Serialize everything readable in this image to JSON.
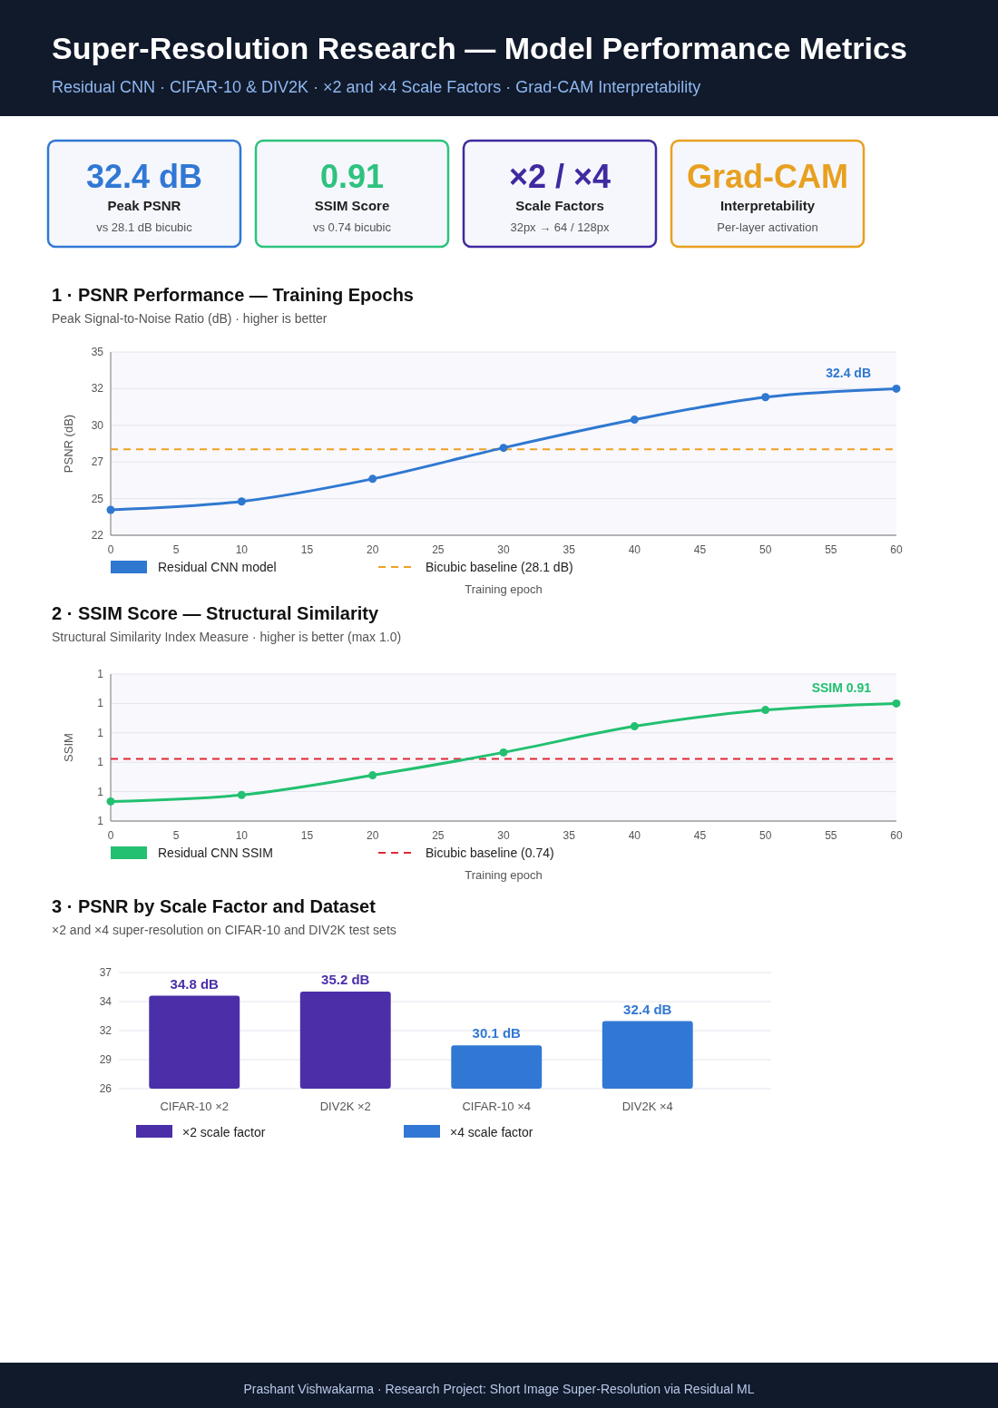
{
  "chart_data": [
    {
      "type": "other",
      "title": "Super-Resolution Research — Model Performance Metrics",
      "subtitle": "Residual CNN  ·  CIFAR-10 & DIV2K  ·  ×2 and ×4 Scale Factors  ·  Grad-CAM Interpretability",
      "colors": [
        "#3178d4",
        "#2ec27e",
        "#3f2aa0",
        "#e8a020"
      ],
      "annotations": [
        "32.4 dB",
        "Peak PSNR",
        "vs 28.1 dB bicubic",
        "0.91",
        "SSIM Score",
        "vs 0.74 bicubic",
        "×2 / ×4",
        "Scale Factors",
        "32px → 64 / 128px",
        "Grad-CAM",
        "Interpretability",
        "Per-layer activation",
        "Prashant Vishwakarma  ·  Research Project: Short Image Super-Resolution via Residual ML"
      ]
    },
    {
      "type": "line",
      "title": "1 · PSNR Performance — Training Epochs",
      "subtitle": "Peak Signal-to-Noise Ratio (dB) · higher is better",
      "xlabel": "Training epoch",
      "ylabel": "PSNR (dB)",
      "x": [
        0,
        10,
        20,
        30,
        40,
        50,
        60
      ],
      "xlim": [
        0,
        60
      ],
      "xticks": [
        0,
        5,
        10,
        15,
        20,
        25,
        30,
        35,
        40,
        45,
        50,
        55,
        60
      ],
      "ylim": [
        22,
        35
      ],
      "yticks": [
        22,
        {
          "value": 24.6,
          "label": "25"
        },
        {
          "value": 27.2,
          "label": "27"
        },
        {
          "value": 29.8,
          "label": "30"
        },
        {
          "value": 32.4,
          "label": "32"
        },
        35
      ],
      "series": [
        {
          "name": "Residual CNN model",
          "color": "#2f78d0",
          "values": [
            23.8,
            24.4,
            26.0,
            28.2,
            30.2,
            31.8,
            32.4
          ]
        }
      ],
      "ref_lines": [
        {
          "axis": "y",
          "value": 28.1,
          "label": "Bicubic baseline (28.1 dB)",
          "color": "#f0a020",
          "line_style": "dashed"
        }
      ],
      "annotations": [
        {
          "text": "32.4 dB",
          "x": 60,
          "y": 32.4
        }
      ],
      "grid": "y",
      "legend": "bottom",
      "marker": "circle"
    },
    {
      "type": "line",
      "title": "2 · SSIM Score — Structural Similarity",
      "subtitle": "Structural Similarity Index Measure · higher is better (max 1.0)",
      "xlabel": "Training epoch",
      "ylabel": "SSIM",
      "x": [
        0,
        10,
        20,
        30,
        40,
        50,
        60
      ],
      "xlim": [
        0,
        60
      ],
      "xticks": [
        0,
        5,
        10,
        15,
        20,
        25,
        30,
        35,
        40,
        45,
        50,
        55,
        60
      ],
      "ylim": [
        0.55,
        1.0
      ],
      "yticks": [
        {
          "value": 0.55,
          "label": "1"
        },
        {
          "value": 0.64,
          "label": "1"
        },
        {
          "value": 0.73,
          "label": "1"
        },
        {
          "value": 0.82,
          "label": "1"
        },
        {
          "value": 0.91,
          "label": "1"
        },
        {
          "value": 1.0,
          "label": "1"
        }
      ],
      "series": [
        {
          "name": "Residual CNN SSIM",
          "color": "#22c070",
          "values": [
            0.61,
            0.63,
            0.69,
            0.76,
            0.84,
            0.89,
            0.91
          ]
        }
      ],
      "ref_lines": [
        {
          "axis": "y",
          "value": 0.74,
          "label": "Bicubic baseline (0.74)",
          "color": "#e02838",
          "line_style": "dashed"
        }
      ],
      "annotations": [
        {
          "text": "SSIM 0.91",
          "x": 60,
          "y": 0.91
        }
      ],
      "grid": "y",
      "legend": "bottom",
      "marker": "circle"
    },
    {
      "type": "bar",
      "title": "3 · PSNR by Scale Factor and Dataset",
      "subtitle": "×2 and ×4 super-resolution on CIFAR-10 and DIV2K test sets",
      "categories": [
        "CIFAR-10 ×2",
        "DIV2K ×2",
        "CIFAR-10 ×4",
        "DIV2K ×4"
      ],
      "ylim": [
        26,
        37
      ],
      "yticks": [
        26,
        {
          "value": 28.75,
          "label": "29"
        },
        {
          "value": 31.5,
          "label": "32"
        },
        {
          "value": 34.25,
          "label": "34"
        },
        37
      ],
      "series": [
        {
          "name": "×2 scale factor",
          "color": "#4a2fa8",
          "values": [
            34.8,
            35.2,
            null,
            null
          ],
          "value_labels": [
            "34.8 dB",
            "35.2 dB",
            null,
            null
          ]
        },
        {
          "name": "×4 scale factor",
          "color": "#3178d4",
          "values": [
            null,
            null,
            30.1,
            32.4
          ],
          "value_labels": [
            null,
            null,
            "30.1 dB",
            "32.4 dB"
          ]
        }
      ],
      "grid": "y",
      "legend": "bottom"
    }
  ]
}
